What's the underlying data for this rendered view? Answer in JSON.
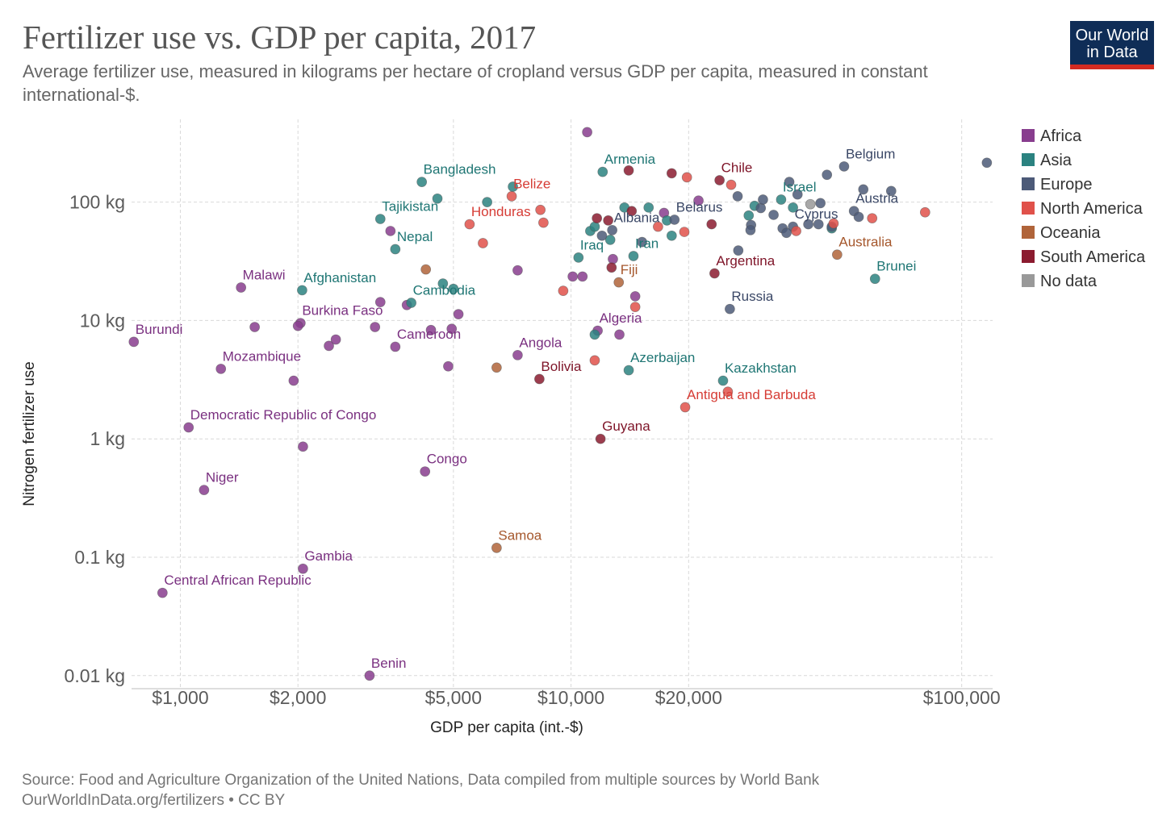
{
  "header": {
    "title": "Fertilizer use vs. GDP per capita, 2017",
    "subtitle": "Average fertilizer use, measured in kilograms per hectare of cropland versus GDP per capita, measured in constant international-$.",
    "logo_line1": "Our World",
    "logo_line2": "in Data"
  },
  "footer": {
    "source": "Source: Food and Agriculture Organization of the United Nations, Data compiled from multiple sources by World Bank",
    "credit": "OurWorldInData.org/fertilizers • CC BY"
  },
  "colors": {
    "Africa": "#883d8e",
    "Asia": "#2b8280",
    "Europe": "#4c5a78",
    "North America": "#e0514a",
    "Oceania": "#b0643a",
    "South America": "#8b1b2f",
    "No data": "#999999"
  },
  "chart_data": {
    "type": "scatter",
    "title": "Fertilizer use vs. GDP per capita, 2017",
    "xlabel": "GDP per capita (int.-$)",
    "ylabel": "Nitrogen fertilizer use",
    "x_scale": "log",
    "y_scale": "log",
    "xlim": [
      750,
      120000
    ],
    "ylim": [
      0.008,
      500
    ],
    "x_ticks": [
      1000,
      2000,
      5000,
      10000,
      20000,
      100000
    ],
    "x_tick_labels": [
      "$1,000",
      "$2,000",
      "$5,000",
      "$10,000",
      "$20,000",
      "$100,000"
    ],
    "y_ticks": [
      0.01,
      0.1,
      1,
      10,
      100
    ],
    "y_tick_labels": [
      "0.01 kg",
      "0.1 kg",
      "1 kg",
      "10 kg",
      "100 kg"
    ],
    "grid": true,
    "legend_position": "right",
    "legend": [
      "Africa",
      "Asia",
      "Europe",
      "North America",
      "Oceania",
      "South America",
      "No data"
    ],
    "points": [
      {
        "label": "Burundi",
        "x": 760,
        "y": 6.6,
        "continent": "Africa"
      },
      {
        "label": "Central African Republic",
        "x": 900,
        "y": 0.05,
        "continent": "Africa"
      },
      {
        "label": "Democratic Republic of Congo",
        "x": 1050,
        "y": 1.25,
        "continent": "Africa"
      },
      {
        "label": "Niger",
        "x": 1150,
        "y": 0.37,
        "continent": "Africa"
      },
      {
        "label": "Mozambique",
        "x": 1270,
        "y": 3.9,
        "continent": "Africa"
      },
      {
        "label": "Malawi",
        "x": 1430,
        "y": 19,
        "continent": "Africa"
      },
      {
        "label": "Burkina Faso",
        "x": 2030,
        "y": 9.5,
        "continent": "Africa"
      },
      {
        "label": "Gambia",
        "x": 2060,
        "y": 0.08,
        "continent": "Africa"
      },
      {
        "label": "Benin",
        "x": 3050,
        "y": 0.01,
        "continent": "Africa"
      },
      {
        "label": "Cameroon",
        "x": 3550,
        "y": 6.0,
        "continent": "Africa"
      },
      {
        "label": "Congo",
        "x": 4230,
        "y": 0.53,
        "continent": "Africa"
      },
      {
        "label": "Angola",
        "x": 7300,
        "y": 5.1,
        "continent": "Africa"
      },
      {
        "label": "Algeria",
        "x": 11700,
        "y": 8.2,
        "continent": "Africa"
      },
      {
        "label": "",
        "x": 1550,
        "y": 8.8,
        "continent": "Africa"
      },
      {
        "label": "",
        "x": 1950,
        "y": 3.1,
        "continent": "Africa"
      },
      {
        "label": "",
        "x": 2000,
        "y": 9.0,
        "continent": "Africa"
      },
      {
        "label": "",
        "x": 2060,
        "y": 0.86,
        "continent": "Africa"
      },
      {
        "label": "",
        "x": 2400,
        "y": 6.1,
        "continent": "Africa"
      },
      {
        "label": "",
        "x": 2500,
        "y": 6.9,
        "continent": "Africa"
      },
      {
        "label": "",
        "x": 3150,
        "y": 8.8,
        "continent": "Africa"
      },
      {
        "label": "",
        "x": 3250,
        "y": 14.3,
        "continent": "Africa"
      },
      {
        "label": "",
        "x": 3450,
        "y": 57,
        "continent": "Africa"
      },
      {
        "label": "",
        "x": 3800,
        "y": 13.5,
        "continent": "Africa"
      },
      {
        "label": "",
        "x": 4380,
        "y": 8.3,
        "continent": "Africa"
      },
      {
        "label": "",
        "x": 4850,
        "y": 4.1,
        "continent": "Africa"
      },
      {
        "label": "",
        "x": 4950,
        "y": 8.5,
        "continent": "Africa"
      },
      {
        "label": "",
        "x": 5150,
        "y": 11.3,
        "continent": "Africa"
      },
      {
        "label": "",
        "x": 7300,
        "y": 26.5,
        "continent": "Africa"
      },
      {
        "label": "",
        "x": 10100,
        "y": 23.5,
        "continent": "Africa"
      },
      {
        "label": "",
        "x": 10700,
        "y": 23.5,
        "continent": "Africa"
      },
      {
        "label": "",
        "x": 11000,
        "y": 390,
        "continent": "Africa"
      },
      {
        "label": "",
        "x": 12800,
        "y": 33,
        "continent": "Africa"
      },
      {
        "label": "",
        "x": 13300,
        "y": 7.6,
        "continent": "Africa"
      },
      {
        "label": "",
        "x": 14600,
        "y": 16,
        "continent": "Africa"
      },
      {
        "label": "",
        "x": 17300,
        "y": 81,
        "continent": "Africa"
      },
      {
        "label": "",
        "x": 21200,
        "y": 103,
        "continent": "Africa"
      },
      {
        "label": "Bangladesh",
        "x": 4150,
        "y": 148,
        "continent": "Asia"
      },
      {
        "label": "Tajikistan",
        "x": 3250,
        "y": 72,
        "continent": "Asia"
      },
      {
        "label": "Nepal",
        "x": 3550,
        "y": 40,
        "continent": "Asia"
      },
      {
        "label": "Afghanistan",
        "x": 2050,
        "y": 18,
        "continent": "Asia"
      },
      {
        "label": "Cambodia",
        "x": 3900,
        "y": 14.1,
        "continent": "Asia"
      },
      {
        "label": "Armenia",
        "x": 12050,
        "y": 180,
        "continent": "Asia"
      },
      {
        "label": "Iraq",
        "x": 10450,
        "y": 34,
        "continent": "Asia"
      },
      {
        "label": "Iran",
        "x": 14450,
        "y": 35,
        "continent": "Asia"
      },
      {
        "label": "Israel",
        "x": 34500,
        "y": 105,
        "continent": "Asia"
      },
      {
        "label": "Azerbaijan",
        "x": 14050,
        "y": 3.8,
        "continent": "Asia"
      },
      {
        "label": "Kazakhstan",
        "x": 24500,
        "y": 3.1,
        "continent": "Asia"
      },
      {
        "label": "Brunei",
        "x": 60000,
        "y": 22.5,
        "continent": "Asia"
      },
      {
        "label": "",
        "x": 4550,
        "y": 107,
        "continent": "Asia"
      },
      {
        "label": "",
        "x": 4700,
        "y": 20.5,
        "continent": "Asia"
      },
      {
        "label": "",
        "x": 5000,
        "y": 18.5,
        "continent": "Asia"
      },
      {
        "label": "",
        "x": 6100,
        "y": 100,
        "continent": "Asia"
      },
      {
        "label": "",
        "x": 7100,
        "y": 135,
        "continent": "Asia"
      },
      {
        "label": "",
        "x": 11500,
        "y": 7.6,
        "continent": "Asia"
      },
      {
        "label": "",
        "x": 11200,
        "y": 57,
        "continent": "Asia"
      },
      {
        "label": "",
        "x": 11500,
        "y": 62,
        "continent": "Asia"
      },
      {
        "label": "",
        "x": 12600,
        "y": 48,
        "continent": "Asia"
      },
      {
        "label": "",
        "x": 13700,
        "y": 90,
        "continent": "Asia"
      },
      {
        "label": "",
        "x": 15800,
        "y": 90,
        "continent": "Asia"
      },
      {
        "label": "",
        "x": 17600,
        "y": 70,
        "continent": "Asia"
      },
      {
        "label": "",
        "x": 18100,
        "y": 52,
        "continent": "Asia"
      },
      {
        "label": "",
        "x": 28500,
        "y": 77,
        "continent": "Asia"
      },
      {
        "label": "",
        "x": 29500,
        "y": 93,
        "continent": "Asia"
      },
      {
        "label": "",
        "x": 37000,
        "y": 90,
        "continent": "Asia"
      },
      {
        "label": "",
        "x": 46500,
        "y": 60,
        "continent": "Asia"
      },
      {
        "label": "Belgium",
        "x": 50000,
        "y": 200,
        "continent": "Europe"
      },
      {
        "label": "Albania",
        "x": 12750,
        "y": 58,
        "continent": "Europe"
      },
      {
        "label": "Belarus",
        "x": 18400,
        "y": 71,
        "continent": "Europe"
      },
      {
        "label": "Cyprus",
        "x": 37000,
        "y": 62,
        "continent": "Europe"
      },
      {
        "label": "Austria",
        "x": 53000,
        "y": 84,
        "continent": "Europe"
      },
      {
        "label": "Russia",
        "x": 25500,
        "y": 12.5,
        "continent": "Europe"
      },
      {
        "label": "",
        "x": 12000,
        "y": 52,
        "continent": "Europe"
      },
      {
        "label": "",
        "x": 15200,
        "y": 46,
        "continent": "Europe"
      },
      {
        "label": "",
        "x": 26700,
        "y": 112,
        "continent": "Europe"
      },
      {
        "label": "",
        "x": 26800,
        "y": 39,
        "continent": "Europe"
      },
      {
        "label": "",
        "x": 28900,
        "y": 64,
        "continent": "Europe"
      },
      {
        "label": "",
        "x": 28800,
        "y": 58,
        "continent": "Europe"
      },
      {
        "label": "",
        "x": 30600,
        "y": 89,
        "continent": "Europe"
      },
      {
        "label": "",
        "x": 31000,
        "y": 105,
        "continent": "Europe"
      },
      {
        "label": "",
        "x": 33000,
        "y": 78,
        "continent": "Europe"
      },
      {
        "label": "",
        "x": 34800,
        "y": 60,
        "continent": "Europe"
      },
      {
        "label": "",
        "x": 35600,
        "y": 55,
        "continent": "Europe"
      },
      {
        "label": "",
        "x": 36200,
        "y": 148,
        "continent": "Europe"
      },
      {
        "label": "",
        "x": 38000,
        "y": 116,
        "continent": "Europe"
      },
      {
        "label": "",
        "x": 40500,
        "y": 65,
        "continent": "Europe"
      },
      {
        "label": "",
        "x": 43000,
        "y": 65,
        "continent": "Europe"
      },
      {
        "label": "",
        "x": 43500,
        "y": 98,
        "continent": "Europe"
      },
      {
        "label": "",
        "x": 45200,
        "y": 170,
        "continent": "Europe"
      },
      {
        "label": "",
        "x": 46500,
        "y": 62,
        "continent": "Europe"
      },
      {
        "label": "",
        "x": 54500,
        "y": 75,
        "continent": "Europe"
      },
      {
        "label": "",
        "x": 56000,
        "y": 128,
        "continent": "Europe"
      },
      {
        "label": "",
        "x": 66000,
        "y": 124,
        "continent": "Europe"
      },
      {
        "label": "",
        "x": 116000,
        "y": 215,
        "continent": "Europe"
      },
      {
        "label": "Belize",
        "x": 7050,
        "y": 112,
        "continent": "North America"
      },
      {
        "label": "Honduras",
        "x": 5500,
        "y": 65,
        "continent": "North America"
      },
      {
        "label": "Antigua and Barbuda",
        "x": 19600,
        "y": 1.85,
        "continent": "North America"
      },
      {
        "label": "",
        "x": 5950,
        "y": 45,
        "continent": "North America"
      },
      {
        "label": "",
        "x": 8350,
        "y": 86,
        "continent": "North America"
      },
      {
        "label": "",
        "x": 8500,
        "y": 67,
        "continent": "North America"
      },
      {
        "label": "",
        "x": 9550,
        "y": 17.8,
        "continent": "North America"
      },
      {
        "label": "",
        "x": 11500,
        "y": 4.6,
        "continent": "North America"
      },
      {
        "label": "",
        "x": 14600,
        "y": 13,
        "continent": "North America"
      },
      {
        "label": "",
        "x": 16700,
        "y": 62,
        "continent": "North America"
      },
      {
        "label": "",
        "x": 19500,
        "y": 56,
        "continent": "North America"
      },
      {
        "label": "",
        "x": 19800,
        "y": 162,
        "continent": "North America"
      },
      {
        "label": "",
        "x": 25200,
        "y": 2.5,
        "continent": "North America"
      },
      {
        "label": "",
        "x": 25700,
        "y": 140,
        "continent": "North America"
      },
      {
        "label": "",
        "x": 37700,
        "y": 57,
        "continent": "North America"
      },
      {
        "label": "",
        "x": 47000,
        "y": 66,
        "continent": "North America"
      },
      {
        "label": "",
        "x": 59000,
        "y": 73,
        "continent": "North America"
      },
      {
        "label": "",
        "x": 80600,
        "y": 82,
        "continent": "North America"
      },
      {
        "label": "Fiji",
        "x": 13250,
        "y": 21,
        "continent": "Oceania"
      },
      {
        "label": "Australia",
        "x": 48000,
        "y": 36,
        "continent": "Oceania"
      },
      {
        "label": "Samoa",
        "x": 6450,
        "y": 0.12,
        "continent": "Oceania"
      },
      {
        "label": "",
        "x": 4250,
        "y": 27,
        "continent": "Oceania"
      },
      {
        "label": "",
        "x": 6450,
        "y": 4.0,
        "continent": "Oceania"
      },
      {
        "label": "Chile",
        "x": 24000,
        "y": 153,
        "continent": "South America"
      },
      {
        "label": "Argentina",
        "x": 23300,
        "y": 25,
        "continent": "South America"
      },
      {
        "label": "Bolivia",
        "x": 8300,
        "y": 3.2,
        "continent": "South America"
      },
      {
        "label": "Guyana",
        "x": 11900,
        "y": 1.0,
        "continent": "South America"
      },
      {
        "label": "",
        "x": 11650,
        "y": 73,
        "continent": "South America"
      },
      {
        "label": "",
        "x": 12450,
        "y": 70,
        "continent": "South America"
      },
      {
        "label": "",
        "x": 12700,
        "y": 28,
        "continent": "South America"
      },
      {
        "label": "",
        "x": 14050,
        "y": 185,
        "continent": "South America"
      },
      {
        "label": "",
        "x": 14300,
        "y": 84,
        "continent": "South America"
      },
      {
        "label": "",
        "x": 18100,
        "y": 175,
        "continent": "South America"
      },
      {
        "label": "",
        "x": 22900,
        "y": 65,
        "continent": "South America"
      },
      {
        "label": "",
        "x": 41000,
        "y": 96,
        "continent": "No data"
      }
    ]
  }
}
